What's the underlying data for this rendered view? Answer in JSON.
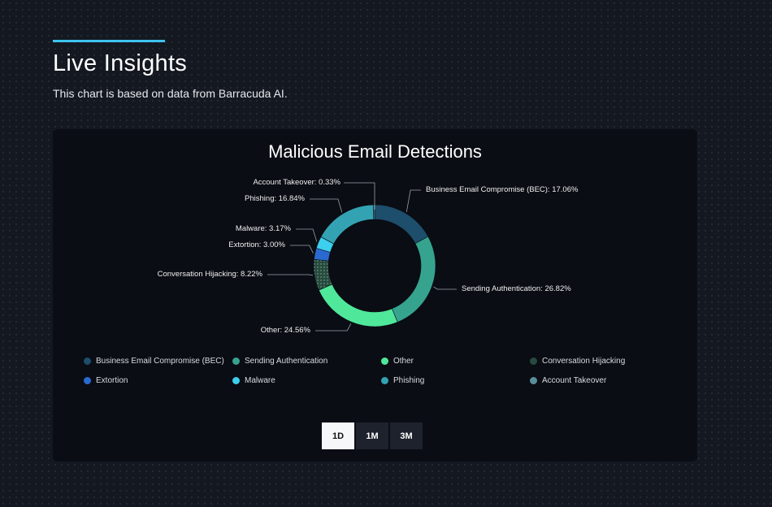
{
  "header": {
    "title": "Live Insights",
    "subtitle": "This chart is based on data from Barracuda AI."
  },
  "chart_data": {
    "type": "pie",
    "donut": true,
    "title": "Malicious Email Detections",
    "legend_position": "bottom",
    "series": [
      {
        "name": "Business Email Compromise (BEC)",
        "value": 17.06,
        "label": "Business Email Compromise (BEC): 17.06%",
        "color": "#1d4e6b"
      },
      {
        "name": "Sending Authentication",
        "value": 26.82,
        "label": "Sending Authentication: 26.82%",
        "color": "#36a38f"
      },
      {
        "name": "Other",
        "value": 24.56,
        "label": "Other: 24.56%",
        "color": "#4fe89a"
      },
      {
        "name": "Conversation Hijacking",
        "value": 8.22,
        "label": "Conversation Hijacking: 8.22%",
        "color": "#284a3e"
      },
      {
        "name": "Extortion",
        "value": 3.0,
        "label": "Extortion: 3.00%",
        "color": "#2a6ad0"
      },
      {
        "name": "Malware",
        "value": 3.17,
        "label": "Malware: 3.17%",
        "color": "#3ccfee"
      },
      {
        "name": "Phishing",
        "value": 16.84,
        "label": "Phishing: 16.84%",
        "color": "#33a3b3"
      },
      {
        "name": "Account Takeover",
        "value": 0.33,
        "label": "Account Takeover: 0.33%",
        "color": "#5a8f9a"
      }
    ],
    "legend_order": [
      0,
      1,
      2,
      3,
      4,
      5,
      6,
      7
    ]
  },
  "range_buttons": [
    {
      "label": "1D",
      "active": true
    },
    {
      "label": "1M",
      "active": false
    },
    {
      "label": "3M",
      "active": false
    }
  ]
}
